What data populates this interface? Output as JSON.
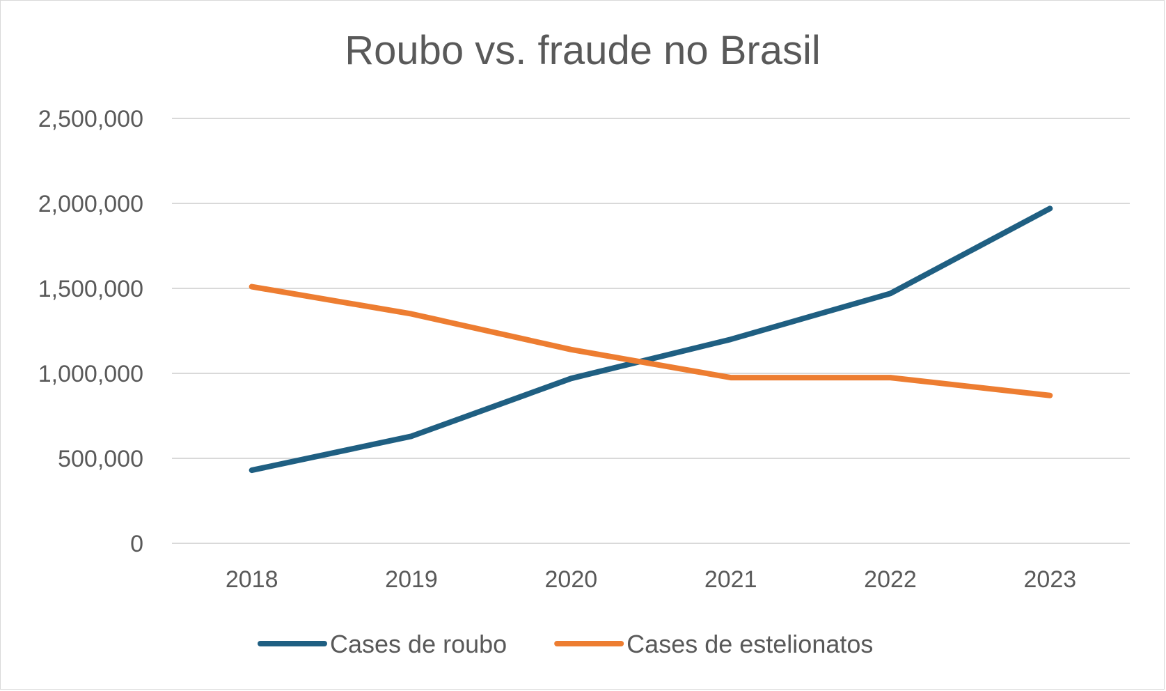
{
  "chart_data": {
    "type": "line",
    "title": "Roubo vs. fraude no Brasil",
    "xlabel": "",
    "ylabel": "",
    "categories": [
      "2018",
      "2019",
      "2020",
      "2021",
      "2022",
      "2023"
    ],
    "ylim": [
      0,
      2500000
    ],
    "yticks": [
      0,
      500000,
      1000000,
      1500000,
      2000000,
      2500000
    ],
    "ytick_labels": [
      "0",
      "500,000",
      "1,000,000",
      "1,500,000",
      "2,000,000",
      "2,500,000"
    ],
    "grid": true,
    "legend": "bottom",
    "series": [
      {
        "name": "Cases de roubo",
        "color": "#1f5f82",
        "values": [
          430000,
          630000,
          970000,
          1200000,
          1470000,
          1970000
        ]
      },
      {
        "name": "Cases de estelionatos",
        "color": "#ed7d31",
        "values": [
          1510000,
          1350000,
          1140000,
          975000,
          975000,
          870000
        ]
      }
    ]
  }
}
